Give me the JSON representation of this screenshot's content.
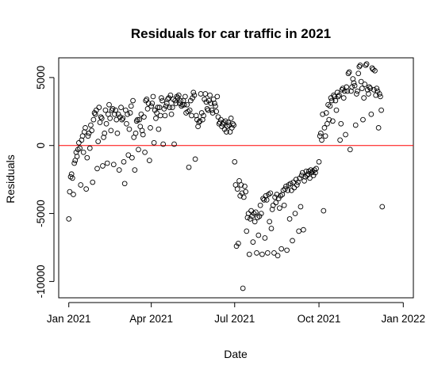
{
  "chart_data": {
    "type": "scatter",
    "title": "Residuals for car traffic in 2021",
    "xlabel": "Date",
    "ylabel": "Residuals",
    "x_tick_labels": [
      "Jan 2021",
      "Apr 2021",
      "Jul 2021",
      "Oct 2021",
      "Jan 2022"
    ],
    "x_tick_dates": [
      "2021-01-01",
      "2021-04-01",
      "2021-07-01",
      "2021-10-01",
      "2022-01-01"
    ],
    "y_tick_labels": [
      "-10000",
      "-5000",
      "0",
      "5000"
    ],
    "y_tick_values": [
      -10000,
      -5000,
      0,
      5000
    ],
    "xlim": [
      "2020-12-21",
      "2022-01-12"
    ],
    "ylim": [
      -11200,
      6450
    ],
    "reference_line": {
      "y": 0,
      "color": "#ff0000"
    },
    "point_color": "#000000",
    "grid": false,
    "points": [
      [
        "2021-01-01",
        -5400
      ],
      [
        "2021-01-02",
        -3400
      ],
      [
        "2021-01-03",
        -2300
      ],
      [
        "2021-01-04",
        -2100
      ],
      [
        "2021-01-05",
        -2400
      ],
      [
        "2021-01-06",
        -3600
      ],
      [
        "2021-01-07",
        -1300
      ],
      [
        "2021-01-08",
        -1100
      ],
      [
        "2021-01-09",
        -500
      ],
      [
        "2021-01-10",
        -800
      ],
      [
        "2021-01-11",
        -300
      ],
      [
        "2021-01-12",
        200
      ],
      [
        "2021-01-13",
        -200
      ],
      [
        "2021-01-14",
        -2900
      ],
      [
        "2021-01-15",
        400
      ],
      [
        "2021-01-16",
        700
      ],
      [
        "2021-01-17",
        -500
      ],
      [
        "2021-01-18",
        1000
      ],
      [
        "2021-01-19",
        1300
      ],
      [
        "2021-01-20",
        -3200
      ],
      [
        "2021-01-21",
        -900
      ],
      [
        "2021-01-22",
        700
      ],
      [
        "2021-01-23",
        900
      ],
      [
        "2021-01-24",
        -200
      ],
      [
        "2021-01-25",
        1500
      ],
      [
        "2021-01-26",
        1100
      ],
      [
        "2021-01-27",
        -2700
      ],
      [
        "2021-01-28",
        1900
      ],
      [
        "2021-01-29",
        2400
      ],
      [
        "2021-01-30",
        2300
      ],
      [
        "2021-01-31",
        2600
      ],
      [
        "2021-02-01",
        -1700
      ],
      [
        "2021-02-02",
        300
      ],
      [
        "2021-02-03",
        2800
      ],
      [
        "2021-02-04",
        1700
      ],
      [
        "2021-02-05",
        2100
      ],
      [
        "2021-02-06",
        2000
      ],
      [
        "2021-02-07",
        -1500
      ],
      [
        "2021-02-08",
        600
      ],
      [
        "2021-02-09",
        900
      ],
      [
        "2021-02-10",
        2600
      ],
      [
        "2021-02-11",
        1600
      ],
      [
        "2021-02-12",
        -1300
      ],
      [
        "2021-02-13",
        2300
      ],
      [
        "2021-02-14",
        3000
      ],
      [
        "2021-02-15",
        2000
      ],
      [
        "2021-02-16",
        1100
      ],
      [
        "2021-02-17",
        2600
      ],
      [
        "2021-02-18",
        2700
      ],
      [
        "2021-02-19",
        -1400
      ],
      [
        "2021-02-20",
        2300
      ],
      [
        "2021-02-21",
        2600
      ],
      [
        "2021-02-22",
        1900
      ],
      [
        "2021-02-23",
        900
      ],
      [
        "2021-02-24",
        2300
      ],
      [
        "2021-02-25",
        -1800
      ],
      [
        "2021-02-26",
        2100
      ],
      [
        "2021-02-27",
        2800
      ],
      [
        "2021-02-28",
        1900
      ],
      [
        "2021-03-01",
        2000
      ],
      [
        "2021-03-02",
        -1200
      ],
      [
        "2021-03-03",
        -2800
      ],
      [
        "2021-03-04",
        2600
      ],
      [
        "2021-03-05",
        1600
      ],
      [
        "2021-03-06",
        2300
      ],
      [
        "2021-03-07",
        -700
      ],
      [
        "2021-03-08",
        1200
      ],
      [
        "2021-03-09",
        2400
      ],
      [
        "2021-03-10",
        2900
      ],
      [
        "2021-03-11",
        -900
      ],
      [
        "2021-03-12",
        3300
      ],
      [
        "2021-03-13",
        600
      ],
      [
        "2021-03-14",
        -1800
      ],
      [
        "2021-03-15",
        900
      ],
      [
        "2021-03-16",
        1800
      ],
      [
        "2021-03-17",
        1900
      ],
      [
        "2021-03-18",
        -300
      ],
      [
        "2021-03-19",
        1900
      ],
      [
        "2021-03-20",
        1400
      ],
      [
        "2021-03-21",
        2300
      ],
      [
        "2021-03-22",
        1100
      ],
      [
        "2021-03-23",
        800
      ],
      [
        "2021-03-24",
        2100
      ],
      [
        "2021-03-25",
        -500
      ],
      [
        "2021-03-26",
        3300
      ],
      [
        "2021-03-27",
        3400
      ],
      [
        "2021-03-28",
        2700
      ],
      [
        "2021-03-29",
        3100
      ],
      [
        "2021-03-30",
        -1100
      ],
      [
        "2021-03-31",
        1300
      ],
      [
        "2021-04-01",
        2900
      ],
      [
        "2021-04-02",
        3100
      ],
      [
        "2021-04-03",
        3600
      ],
      [
        "2021-04-04",
        200
      ],
      [
        "2021-04-05",
        2600
      ],
      [
        "2021-04-06",
        2000
      ],
      [
        "2021-04-07",
        2400
      ],
      [
        "2021-04-08",
        2800
      ],
      [
        "2021-04-09",
        1200
      ],
      [
        "2021-04-10",
        2800
      ],
      [
        "2021-04-11",
        2200
      ],
      [
        "2021-04-12",
        3500
      ],
      [
        "2021-04-13",
        3300
      ],
      [
        "2021-04-14",
        100
      ],
      [
        "2021-04-15",
        2700
      ],
      [
        "2021-04-16",
        2200
      ],
      [
        "2021-04-17",
        2900
      ],
      [
        "2021-04-18",
        3100
      ],
      [
        "2021-04-19",
        3400
      ],
      [
        "2021-04-20",
        3500
      ],
      [
        "2021-04-21",
        2800
      ],
      [
        "2021-04-22",
        3700
      ],
      [
        "2021-04-23",
        2300
      ],
      [
        "2021-04-24",
        2800
      ],
      [
        "2021-04-25",
        3400
      ],
      [
        "2021-04-26",
        100
      ],
      [
        "2021-04-27",
        3300
      ],
      [
        "2021-04-28",
        3100
      ],
      [
        "2021-04-29",
        3600
      ],
      [
        "2021-04-30",
        3500
      ],
      [
        "2021-05-01",
        3700
      ],
      [
        "2021-05-02",
        3100
      ],
      [
        "2021-05-03",
        3300
      ],
      [
        "2021-05-04",
        2900
      ],
      [
        "2021-05-05",
        3000
      ],
      [
        "2021-05-06",
        3300
      ],
      [
        "2021-05-07",
        3000
      ],
      [
        "2021-05-08",
        3600
      ],
      [
        "2021-05-09",
        2400
      ],
      [
        "2021-05-10",
        3000
      ],
      [
        "2021-05-11",
        2500
      ],
      [
        "2021-05-12",
        -1600
      ],
      [
        "2021-05-13",
        2600
      ],
      [
        "2021-05-14",
        3300
      ],
      [
        "2021-05-15",
        2200
      ],
      [
        "2021-05-16",
        3500
      ],
      [
        "2021-05-17",
        3900
      ],
      [
        "2021-05-18",
        3700
      ],
      [
        "2021-05-19",
        -1000
      ],
      [
        "2021-05-20",
        2200
      ],
      [
        "2021-05-21",
        1900
      ],
      [
        "2021-05-22",
        1400
      ],
      [
        "2021-05-23",
        1700
      ],
      [
        "2021-05-24",
        1800
      ],
      [
        "2021-05-25",
        3800
      ],
      [
        "2021-05-26",
        2400
      ],
      [
        "2021-05-27",
        1900
      ],
      [
        "2021-05-28",
        2200
      ],
      [
        "2021-05-29",
        3400
      ],
      [
        "2021-05-30",
        3800
      ],
      [
        "2021-05-31",
        3200
      ],
      [
        "2021-06-01",
        2700
      ],
      [
        "2021-06-02",
        2600
      ],
      [
        "2021-06-03",
        3300
      ],
      [
        "2021-06-04",
        3700
      ],
      [
        "2021-06-05",
        3100
      ],
      [
        "2021-06-06",
        2600
      ],
      [
        "2021-06-07",
        2400
      ],
      [
        "2021-06-08",
        3400
      ],
      [
        "2021-06-09",
        3100
      ],
      [
        "2021-06-10",
        2900
      ],
      [
        "2021-06-11",
        2500
      ],
      [
        "2021-06-12",
        3600
      ],
      [
        "2021-06-13",
        2100
      ],
      [
        "2021-06-14",
        1600
      ],
      [
        "2021-06-15",
        1700
      ],
      [
        "2021-06-16",
        1900
      ],
      [
        "2021-06-17",
        1400
      ],
      [
        "2021-06-18",
        1600
      ],
      [
        "2021-06-19",
        1700
      ],
      [
        "2021-06-20",
        1200
      ],
      [
        "2021-06-21",
        1800
      ],
      [
        "2021-06-22",
        1000
      ],
      [
        "2021-06-23",
        1400
      ],
      [
        "2021-06-24",
        1700
      ],
      [
        "2021-06-25",
        1500
      ],
      [
        "2021-06-26",
        1000
      ],
      [
        "2021-06-27",
        2000
      ],
      [
        "2021-06-28",
        1300
      ],
      [
        "2021-06-29",
        1600
      ],
      [
        "2021-06-30",
        1500
      ],
      [
        "2021-07-01",
        -1200
      ],
      [
        "2021-07-02",
        -2900
      ],
      [
        "2021-07-03",
        -7400
      ],
      [
        "2021-07-04",
        -3200
      ],
      [
        "2021-07-05",
        -7200
      ],
      [
        "2021-07-06",
        -2600
      ],
      [
        "2021-07-07",
        -3700
      ],
      [
        "2021-07-08",
        -2900
      ],
      [
        "2021-07-09",
        -3500
      ],
      [
        "2021-07-10",
        -10500
      ],
      [
        "2021-07-11",
        -3800
      ],
      [
        "2021-07-12",
        -3000
      ],
      [
        "2021-07-13",
        -3400
      ],
      [
        "2021-07-14",
        -6300
      ],
      [
        "2021-07-15",
        -5300
      ],
      [
        "2021-07-16",
        -5000
      ],
      [
        "2021-07-17",
        -8000
      ],
      [
        "2021-07-18",
        -5400
      ],
      [
        "2021-07-19",
        -4800
      ],
      [
        "2021-07-20",
        -5200
      ],
      [
        "2021-07-21",
        -7100
      ],
      [
        "2021-07-22",
        -5000
      ],
      [
        "2021-07-23",
        -5600
      ],
      [
        "2021-07-24",
        -4900
      ],
      [
        "2021-07-25",
        -7900
      ],
      [
        "2021-07-26",
        -5300
      ],
      [
        "2021-07-27",
        -6600
      ],
      [
        "2021-07-28",
        -5200
      ],
      [
        "2021-07-29",
        -4400
      ],
      [
        "2021-07-30",
        -5000
      ],
      [
        "2021-07-31",
        -8000
      ],
      [
        "2021-08-01",
        -3900
      ],
      [
        "2021-08-02",
        -4000
      ],
      [
        "2021-08-03",
        -6800
      ],
      [
        "2021-08-04",
        -3700
      ],
      [
        "2021-08-05",
        -4000
      ],
      [
        "2021-08-06",
        -7900
      ],
      [
        "2021-08-07",
        -3600
      ],
      [
        "2021-08-08",
        -5600
      ],
      [
        "2021-08-09",
        -3500
      ],
      [
        "2021-08-10",
        -6100
      ],
      [
        "2021-08-11",
        -4700
      ],
      [
        "2021-08-12",
        -4400
      ],
      [
        "2021-08-13",
        -7900
      ],
      [
        "2021-08-14",
        -3800
      ],
      [
        "2021-08-15",
        -4200
      ],
      [
        "2021-08-16",
        -3600
      ],
      [
        "2021-08-17",
        -8100
      ],
      [
        "2021-08-18",
        -3900
      ],
      [
        "2021-08-19",
        -4600
      ],
      [
        "2021-08-20",
        -3700
      ],
      [
        "2021-08-21",
        -7600
      ],
      [
        "2021-08-22",
        -3600
      ],
      [
        "2021-08-23",
        -3300
      ],
      [
        "2021-08-24",
        -4400
      ],
      [
        "2021-08-25",
        -3200
      ],
      [
        "2021-08-26",
        -3000
      ],
      [
        "2021-08-27",
        -7700
      ],
      [
        "2021-08-28",
        -3300
      ],
      [
        "2021-08-29",
        -2900
      ],
      [
        "2021-08-30",
        -5400
      ],
      [
        "2021-08-31",
        -2800
      ],
      [
        "2021-09-01",
        -3300
      ],
      [
        "2021-09-02",
        -7000
      ],
      [
        "2021-09-03",
        -2700
      ],
      [
        "2021-09-04",
        -3100
      ],
      [
        "2021-09-05",
        -5000
      ],
      [
        "2021-09-06",
        -2500
      ],
      [
        "2021-09-07",
        -2900
      ],
      [
        "2021-09-08",
        -2700
      ],
      [
        "2021-09-09",
        -6300
      ],
      [
        "2021-09-10",
        -2400
      ],
      [
        "2021-09-11",
        -4500
      ],
      [
        "2021-09-12",
        -2200
      ],
      [
        "2021-09-13",
        -2000
      ],
      [
        "2021-09-14",
        -6200
      ],
      [
        "2021-09-15",
        -2600
      ],
      [
        "2021-09-16",
        -2300
      ],
      [
        "2021-09-17",
        -1900
      ],
      [
        "2021-09-18",
        -2200
      ],
      [
        "2021-09-19",
        -2100
      ],
      [
        "2021-09-20",
        -1900
      ],
      [
        "2021-09-21",
        -2400
      ],
      [
        "2021-09-22",
        -1800
      ],
      [
        "2021-09-23",
        -2000
      ],
      [
        "2021-09-24",
        -1900
      ],
      [
        "2021-09-25",
        -2200
      ],
      [
        "2021-09-26",
        -1800
      ],
      [
        "2021-09-27",
        -2000
      ],
      [
        "2021-09-28",
        -1700
      ],
      [
        "2021-10-01",
        -1200
      ],
      [
        "2021-10-02",
        700
      ],
      [
        "2021-10-03",
        900
      ],
      [
        "2021-10-04",
        400
      ],
      [
        "2021-10-05",
        2300
      ],
      [
        "2021-10-06",
        -4800
      ],
      [
        "2021-10-07",
        1300
      ],
      [
        "2021-10-08",
        700
      ],
      [
        "2021-10-09",
        2400
      ],
      [
        "2021-10-10",
        1600
      ],
      [
        "2021-10-11",
        3000
      ],
      [
        "2021-10-12",
        1900
      ],
      [
        "2021-10-13",
        2900
      ],
      [
        "2021-10-14",
        3500
      ],
      [
        "2021-10-15",
        3300
      ],
      [
        "2021-10-16",
        1800
      ],
      [
        "2021-10-17",
        3700
      ],
      [
        "2021-10-18",
        3600
      ],
      [
        "2021-10-19",
        3300
      ],
      [
        "2021-10-20",
        2600
      ],
      [
        "2021-10-21",
        3900
      ],
      [
        "2021-10-22",
        3600
      ],
      [
        "2021-10-23",
        3700
      ],
      [
        "2021-10-24",
        400
      ],
      [
        "2021-10-25",
        1600
      ],
      [
        "2021-10-26",
        4100
      ],
      [
        "2021-10-27",
        4200
      ],
      [
        "2021-10-28",
        3500
      ],
      [
        "2021-10-29",
        4000
      ],
      [
        "2021-10-30",
        800
      ],
      [
        "2021-10-31",
        4300
      ],
      [
        "2021-11-01",
        4000
      ],
      [
        "2021-11-02",
        5300
      ],
      [
        "2021-11-03",
        5400
      ],
      [
        "2021-11-04",
        -300
      ],
      [
        "2021-11-05",
        4000
      ],
      [
        "2021-11-06",
        4300
      ],
      [
        "2021-11-07",
        4900
      ],
      [
        "2021-11-08",
        4600
      ],
      [
        "2021-11-09",
        4400
      ],
      [
        "2021-11-10",
        1500
      ],
      [
        "2021-11-11",
        3800
      ],
      [
        "2021-11-12",
        4000
      ],
      [
        "2021-11-13",
        5300
      ],
      [
        "2021-11-14",
        5800
      ],
      [
        "2021-11-15",
        5900
      ],
      [
        "2021-11-16",
        4700
      ],
      [
        "2021-11-17",
        4200
      ],
      [
        "2021-11-18",
        1900
      ],
      [
        "2021-11-19",
        3500
      ],
      [
        "2021-11-20",
        4500
      ],
      [
        "2021-11-21",
        5900
      ],
      [
        "2021-11-22",
        6000
      ],
      [
        "2021-11-23",
        4100
      ],
      [
        "2021-11-24",
        3800
      ],
      [
        "2021-11-25",
        4300
      ],
      [
        "2021-11-26",
        4200
      ],
      [
        "2021-11-27",
        2300
      ],
      [
        "2021-11-28",
        5700
      ],
      [
        "2021-11-29",
        5600
      ],
      [
        "2021-11-30",
        4100
      ],
      [
        "2021-12-01",
        5500
      ],
      [
        "2021-12-02",
        3700
      ],
      [
        "2021-12-03",
        4200
      ],
      [
        "2021-12-04",
        4000
      ],
      [
        "2021-12-05",
        1300
      ],
      [
        "2021-12-06",
        3800
      ],
      [
        "2021-12-07",
        3600
      ],
      [
        "2021-12-08",
        2600
      ],
      [
        "2021-12-09",
        -4500
      ]
    ]
  }
}
